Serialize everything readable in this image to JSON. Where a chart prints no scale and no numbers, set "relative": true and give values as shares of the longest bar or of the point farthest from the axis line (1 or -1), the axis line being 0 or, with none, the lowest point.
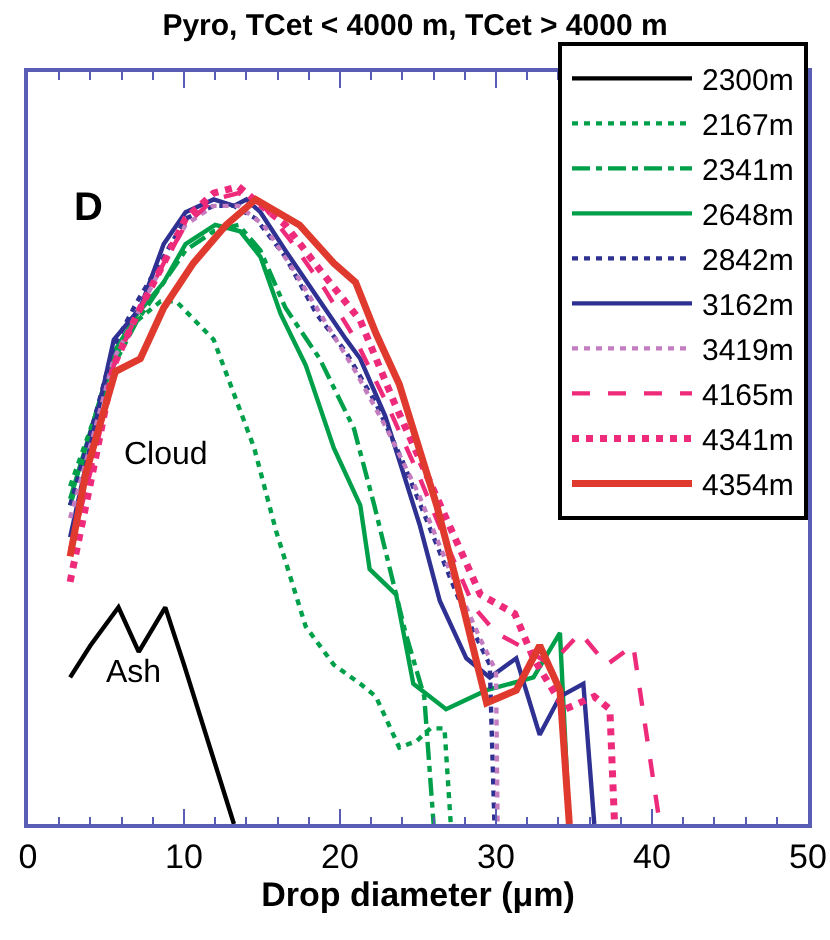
{
  "chart_data": {
    "type": "line",
    "title": "Pyro, TCet < 4000 m, TCet > 4000 m",
    "xlabel": "Drop diameter (μm)",
    "relative": true,
    "xlim": [
      0,
      50
    ],
    "xticks": [
      0,
      10,
      20,
      30,
      40,
      50
    ],
    "legend": "top right",
    "grid": false,
    "marker": "none",
    "annotations": [
      "D",
      "Cloud",
      "Ash"
    ],
    "series": [
      {
        "name": "2300m",
        "color": "#000000",
        "line_style": "solid",
        "x": [
          2.7,
          4.0,
          5.8,
          7.1,
          8.8,
          10.0,
          13.2
        ],
        "values": [
          0.23,
          0.28,
          0.34,
          0.27,
          0.34,
          0.25,
          0
        ]
      },
      {
        "name": "2167m",
        "color": "#00a04a",
        "line_style": "dotted",
        "x": [
          2.7,
          4.3,
          5.5,
          7.0,
          8.5,
          9.5,
          11.9,
          14.5,
          15.9,
          17.8,
          19.6,
          21.3,
          22.3,
          23.8,
          24.9,
          25.8,
          26.7,
          27.1
        ],
        "values": [
          0.53,
          0.64,
          0.73,
          0.79,
          0.82,
          0.82,
          0.76,
          0.59,
          0.46,
          0.31,
          0.25,
          0.22,
          0.2,
          0.12,
          0.13,
          0.15,
          0.15,
          0
        ]
      },
      {
        "name": "2341m",
        "color": "#00a04a",
        "line_style": "dashdot",
        "x": [
          2.7,
          4.3,
          5.5,
          7.0,
          8.7,
          10.1,
          11.9,
          13.5,
          14.9,
          16.5,
          18.7,
          20.9,
          22.2,
          24.2,
          25.4,
          26.0
        ],
        "values": [
          0.5,
          0.63,
          0.72,
          0.79,
          0.85,
          0.9,
          0.93,
          0.94,
          0.9,
          0.81,
          0.73,
          0.62,
          0.5,
          0.3,
          0.2,
          0
        ]
      },
      {
        "name": "2648m",
        "color": "#00a04a",
        "line_style": "solid",
        "x": [
          2.7,
          4.3,
          5.5,
          7.0,
          8.7,
          10.1,
          12.0,
          13.6,
          14.9,
          16.2,
          17.8,
          19.6,
          21.3,
          21.9,
          23.6,
          24.7,
          26.8,
          29.4,
          32.4,
          34.1,
          34.7
        ],
        "values": [
          0.51,
          0.64,
          0.74,
          0.8,
          0.85,
          0.91,
          0.94,
          0.93,
          0.89,
          0.8,
          0.72,
          0.59,
          0.5,
          0.4,
          0.36,
          0.22,
          0.18,
          0.21,
          0.23,
          0.3,
          0
        ]
      },
      {
        "name": "2842m",
        "color": "#2e3192",
        "line_style": "dotted",
        "x": [
          2.7,
          4.3,
          5.5,
          7.0,
          8.7,
          10.1,
          11.9,
          13.2,
          14.6,
          16.5,
          18.5,
          20.4,
          22.3,
          24.0,
          26.0,
          28.0,
          29.6,
          29.9
        ],
        "values": [
          0.5,
          0.64,
          0.75,
          0.82,
          0.89,
          0.95,
          0.97,
          0.97,
          0.95,
          0.89,
          0.8,
          0.74,
          0.66,
          0.57,
          0.45,
          0.33,
          0.25,
          0
        ]
      },
      {
        "name": "3162m",
        "color": "#2e3192",
        "line_style": "solid",
        "x": [
          2.7,
          5.5,
          7.2,
          8.7,
          10.1,
          11.9,
          13.2,
          14.0,
          14.9,
          16.5,
          19.0,
          20.4,
          21.3,
          22.9,
          25.1,
          26.4,
          28.1,
          29.6,
          31.3,
          32.8,
          34.1,
          35.6,
          36.3
        ],
        "values": [
          0.45,
          0.76,
          0.81,
          0.91,
          0.96,
          0.98,
          0.97,
          0.98,
          0.96,
          0.9,
          0.81,
          0.76,
          0.73,
          0.64,
          0.47,
          0.35,
          0.26,
          0.23,
          0.26,
          0.14,
          0.2,
          0.22,
          0
        ]
      },
      {
        "name": "3419m",
        "color": "#c27cbf",
        "line_style": "dotted",
        "x": [
          2.7,
          4.3,
          5.5,
          7.0,
          8.7,
          10.1,
          11.9,
          13.5,
          15.1,
          17.0,
          19.0,
          21.0,
          23.0,
          25.0,
          27.0,
          29.0,
          30.0,
          30.1
        ],
        "values": [
          0.48,
          0.62,
          0.73,
          0.8,
          0.88,
          0.94,
          0.97,
          0.97,
          0.94,
          0.87,
          0.79,
          0.71,
          0.62,
          0.52,
          0.4,
          0.29,
          0.24,
          0
        ]
      },
      {
        "name": "4165m",
        "color": "#ee2a7b",
        "line_style": "dashed",
        "x": [
          2.7,
          4.3,
          5.5,
          7.0,
          8.7,
          10.1,
          11.9,
          13.5,
          15.1,
          17.0,
          19.0,
          21.0,
          23.0,
          25.0,
          27.0,
          28.6,
          30.0,
          31.5,
          33.5,
          35.4,
          37.1,
          38.8,
          40.5
        ],
        "values": [
          0.43,
          0.58,
          0.72,
          0.8,
          0.88,
          0.94,
          0.98,
          0.99,
          0.97,
          0.91,
          0.84,
          0.76,
          0.66,
          0.55,
          0.43,
          0.34,
          0.3,
          0.28,
          0.25,
          0.3,
          0.25,
          0.28,
          0
        ]
      },
      {
        "name": "4341m",
        "color": "#ee2a7b",
        "line_style": "dotted",
        "x": [
          2.7,
          4.3,
          5.5,
          7.0,
          8.7,
          10.1,
          11.9,
          13.5,
          14.5,
          16.5,
          18.7,
          21.3,
          23.5,
          26.8,
          29.0,
          31.2,
          32.4,
          34.4,
          36.3,
          37.3,
          37.6
        ],
        "values": [
          0.38,
          0.57,
          0.72,
          0.8,
          0.88,
          0.95,
          0.99,
          1,
          0.98,
          0.94,
          0.87,
          0.79,
          0.66,
          0.48,
          0.36,
          0.33,
          0.26,
          0.18,
          0.2,
          0.18,
          0
        ]
      },
      {
        "name": "4354m",
        "color": "#e03a2e",
        "line_style": "solid",
        "x": [
          2.7,
          3.7,
          5.6,
          7.2,
          8.7,
          10.6,
          12.7,
          14.6,
          17.4,
          19.6,
          21.0,
          22.3,
          23.8,
          26.2,
          27.9,
          29.4,
          31.3,
          32.8,
          34.1,
          34.7
        ],
        "values": [
          0.42,
          0.55,
          0.71,
          0.73,
          0.81,
          0.88,
          0.94,
          0.98,
          0.94,
          0.88,
          0.85,
          0.77,
          0.69,
          0.5,
          0.34,
          0.19,
          0.21,
          0.28,
          0.21,
          0
        ]
      }
    ]
  }
}
